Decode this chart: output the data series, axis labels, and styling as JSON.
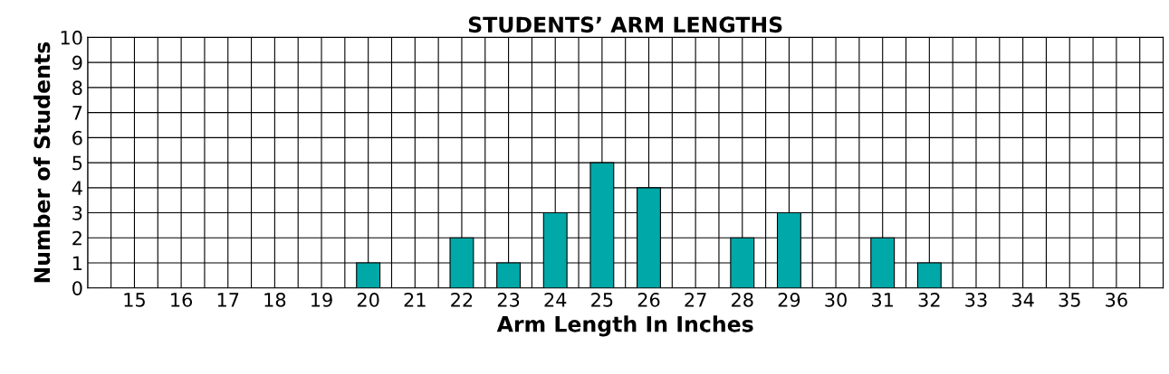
{
  "chart_data": {
    "type": "bar",
    "title": "STUDENTS’ ARM LENGTHS",
    "xlabel": "Arm Length In Inches",
    "ylabel": "Number of Students",
    "categories": [
      "15",
      "16",
      "17",
      "18",
      "19",
      "20",
      "21",
      "22",
      "23",
      "24",
      "25",
      "26",
      "27",
      "28",
      "29",
      "30",
      "31",
      "32",
      "33",
      "34",
      "35",
      "36"
    ],
    "values": [
      0,
      0,
      0,
      0,
      0,
      1,
      0,
      2,
      1,
      3,
      5,
      4,
      0,
      2,
      3,
      0,
      2,
      1,
      0,
      0,
      0,
      0
    ],
    "color": "#00a8a8",
    "ylim": [
      0,
      10
    ],
    "yticks": [
      0,
      1,
      2,
      3,
      4,
      5,
      6,
      7,
      8,
      9,
      10
    ],
    "grid": true
  }
}
